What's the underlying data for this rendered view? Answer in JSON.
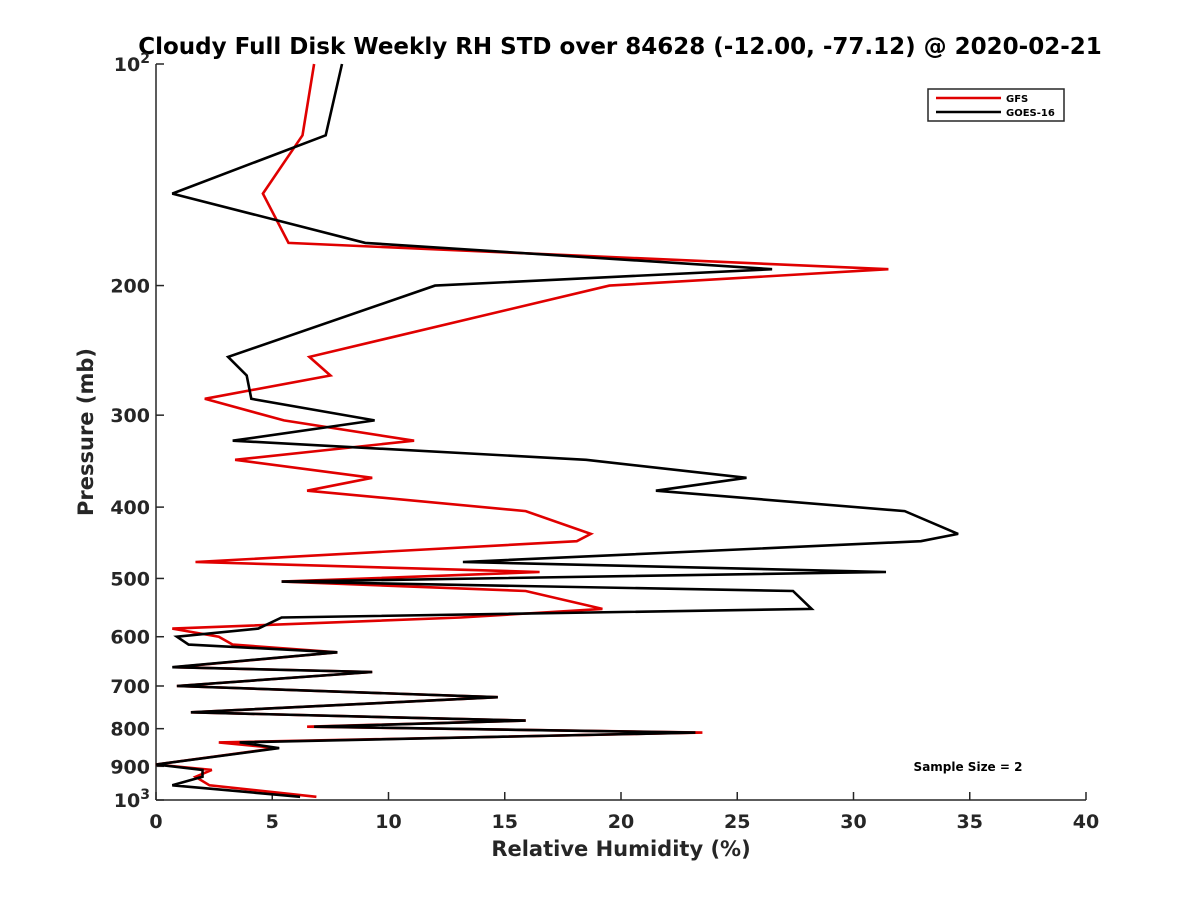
{
  "chart_data": {
    "type": "line",
    "title": "Cloudy Full Disk Weekly RH STD over 84628 (-12.00, -77.12) @ 2020-02-21",
    "xlabel": "Relative Humidity (%)",
    "ylabel": "Pressure (mb)",
    "xlim": [
      0,
      40
    ],
    "ylim": [
      100,
      1000
    ],
    "y_scale": "log",
    "y_reversed": true,
    "x_ticks": [
      "0",
      "5",
      "10",
      "15",
      "20",
      "25",
      "30",
      "35",
      "40"
    ],
    "y_ticks": [
      {
        "value": 100,
        "label": "10",
        "sup": "2"
      },
      {
        "value": 200,
        "label": "200",
        "sup": ""
      },
      {
        "value": 300,
        "label": "300",
        "sup": ""
      },
      {
        "value": 400,
        "label": "400",
        "sup": ""
      },
      {
        "value": 500,
        "label": "500",
        "sup": ""
      },
      {
        "value": 600,
        "label": "600",
        "sup": ""
      },
      {
        "value": 700,
        "label": "700",
        "sup": ""
      },
      {
        "value": 800,
        "label": "800",
        "sup": ""
      },
      {
        "value": 900,
        "label": "900",
        "sup": ""
      },
      {
        "value": 1000,
        "label": "10",
        "sup": "3"
      }
    ],
    "grid": false,
    "legend_position": "top-right",
    "annotation": "Sample Size = 2",
    "series": [
      {
        "name": "GFS",
        "color": "#e00000",
        "points": [
          [
            6.8,
            100
          ],
          [
            6.3,
            125
          ],
          [
            4.6,
            150
          ],
          [
            5.7,
            175
          ],
          [
            31.5,
            190
          ],
          [
            19.5,
            200
          ],
          [
            6.6,
            250
          ],
          [
            7.5,
            265
          ],
          [
            2.1,
            285
          ],
          [
            5.5,
            305
          ],
          [
            11.1,
            325
          ],
          [
            3.4,
            345
          ],
          [
            9.3,
            365
          ],
          [
            6.5,
            380
          ],
          [
            15.9,
            405
          ],
          [
            18.7,
            435
          ],
          [
            18.1,
            445
          ],
          [
            1.7,
            475
          ],
          [
            16.5,
            490
          ],
          [
            5.4,
            505
          ],
          [
            15.9,
            520
          ],
          [
            19.2,
            550
          ],
          [
            13.1,
            565
          ],
          [
            0.7,
            585
          ],
          [
            2.7,
            600
          ],
          [
            3.3,
            615
          ],
          [
            7.8,
            630
          ],
          [
            0.8,
            660
          ],
          [
            9.3,
            670
          ],
          [
            0.9,
            700
          ],
          [
            14.7,
            725
          ],
          [
            1.5,
            760
          ],
          [
            15.9,
            780
          ],
          [
            6.5,
            795
          ],
          [
            23.5,
            810
          ],
          [
            2.7,
            835
          ],
          [
            5.2,
            850
          ],
          [
            0.0,
            895
          ],
          [
            2.4,
            910
          ],
          [
            1.7,
            930
          ],
          [
            2.3,
            955
          ],
          [
            6.9,
            990
          ]
        ]
      },
      {
        "name": "GOES-16",
        "color": "#000000",
        "points": [
          [
            8.0,
            100
          ],
          [
            7.3,
            125
          ],
          [
            0.7,
            150
          ],
          [
            9.0,
            175
          ],
          [
            26.5,
            190
          ],
          [
            12.0,
            200
          ],
          [
            3.1,
            250
          ],
          [
            3.9,
            265
          ],
          [
            4.1,
            285
          ],
          [
            9.4,
            305
          ],
          [
            3.3,
            325
          ],
          [
            18.5,
            345
          ],
          [
            25.4,
            365
          ],
          [
            21.5,
            380
          ],
          [
            32.2,
            405
          ],
          [
            34.5,
            435
          ],
          [
            32.9,
            445
          ],
          [
            13.2,
            475
          ],
          [
            31.4,
            490
          ],
          [
            5.4,
            505
          ],
          [
            27.4,
            520
          ],
          [
            28.2,
            550
          ],
          [
            5.4,
            565
          ],
          [
            4.4,
            585
          ],
          [
            0.9,
            600
          ],
          [
            1.4,
            615
          ],
          [
            7.8,
            630
          ],
          [
            0.7,
            660
          ],
          [
            9.3,
            670
          ],
          [
            0.9,
            700
          ],
          [
            14.7,
            725
          ],
          [
            1.5,
            760
          ],
          [
            15.9,
            780
          ],
          [
            6.8,
            795
          ],
          [
            23.2,
            810
          ],
          [
            3.6,
            835
          ],
          [
            5.3,
            850
          ],
          [
            0.0,
            895
          ],
          [
            2.0,
            910
          ],
          [
            2.0,
            930
          ],
          [
            0.7,
            955
          ],
          [
            6.2,
            990
          ]
        ]
      }
    ]
  }
}
